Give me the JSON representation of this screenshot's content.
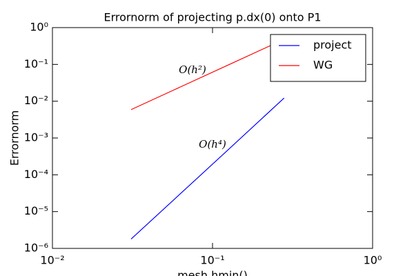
{
  "chart_data": {
    "type": "line",
    "title": "Errornorm of projecting p.dx(0) onto P1",
    "x_label": "mesh hmin()",
    "y_label": "Errornorm",
    "x_scale": "log",
    "y_scale": "log",
    "x": [
      0.031,
      0.0625,
      0.125,
      0.28
    ],
    "series": [
      {
        "name": "project",
        "color": "#0000ff",
        "values": [
          1.8e-06,
          2.97e-05,
          0.000475,
          0.0122
        ]
      },
      {
        "name": "WG",
        "color": "#ff0000",
        "values": [
          0.0059,
          0.024,
          0.096,
          0.48
        ]
      }
    ],
    "annotations": [
      "O(h²)",
      "O(h⁴)"
    ],
    "xlim": [
      0.01,
      1
    ],
    "xticks": [
      {
        "value": 0.01,
        "label": "10⁻²"
      },
      {
        "value": 0.1,
        "label": "10⁻¹"
      },
      {
        "value": 1,
        "label": "10⁰"
      }
    ],
    "ylim": [
      1e-06,
      1
    ],
    "yticks": [
      {
        "value": 1e-06,
        "label": "10⁻⁶"
      },
      {
        "value": 1e-05,
        "label": "10⁻⁵"
      },
      {
        "value": 0.0001,
        "label": "10⁻⁴"
      },
      {
        "value": 0.001,
        "label": "10⁻³"
      },
      {
        "value": 0.01,
        "label": "10⁻²"
      },
      {
        "value": 0.1,
        "label": "10⁻¹"
      },
      {
        "value": 1,
        "label": "10⁰"
      }
    ],
    "legend": "upper right"
  }
}
